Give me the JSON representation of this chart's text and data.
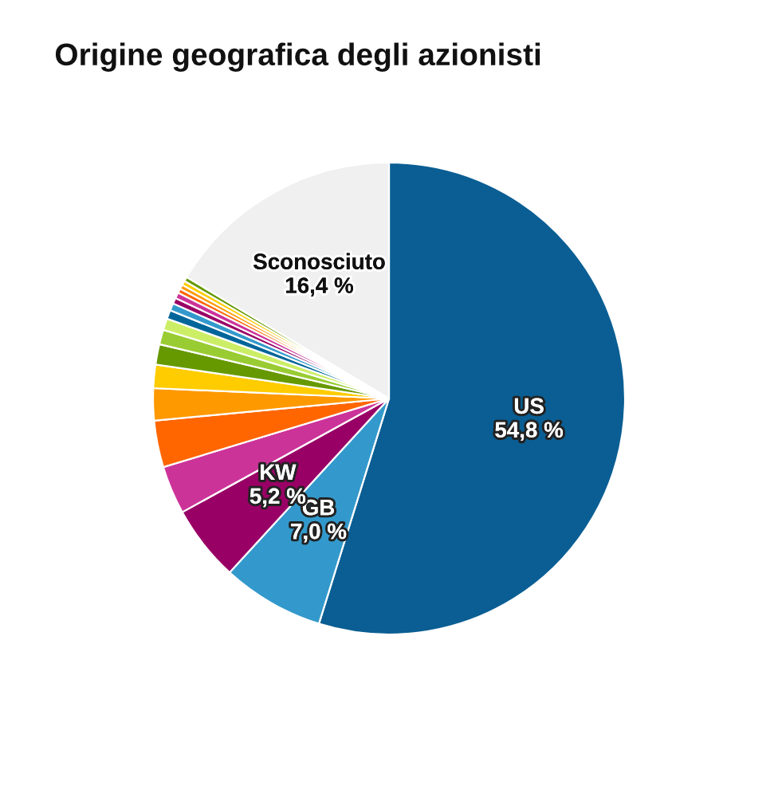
{
  "chart_data": {
    "type": "pie",
    "title": "Origine geografica degli azionisti",
    "categories": [
      "US",
      "GB",
      "KW",
      null,
      null,
      null,
      null,
      null,
      null,
      null,
      null,
      null,
      null,
      null,
      null,
      null,
      null,
      null,
      "Sconosciuto"
    ],
    "values": [
      54.8,
      7.0,
      5.2,
      3.3,
      3.2,
      2.2,
      1.6,
      1.4,
      1.0,
      0.8,
      0.6,
      0.5,
      0.4,
      0.4,
      0.3,
      0.3,
      0.3,
      0.3,
      16.4
    ],
    "value_labels": [
      "54,8 %",
      "7,0 %",
      "5,2 %",
      null,
      null,
      null,
      null,
      null,
      null,
      null,
      null,
      null,
      null,
      null,
      null,
      null,
      null,
      null,
      "16,4 %"
    ],
    "colors": [
      "#0a5e93",
      "#3399cc",
      "#990066",
      "#cc3399",
      "#ff6600",
      "#ff9900",
      "#ffcc00",
      "#669900",
      "#99cc33",
      "#ccee66",
      "#006699",
      "#3399cc",
      "#990066",
      "#cc3399",
      "#ff6600",
      "#ff9900",
      "#ffcc00",
      "#669900",
      "#f0f0f0"
    ]
  }
}
